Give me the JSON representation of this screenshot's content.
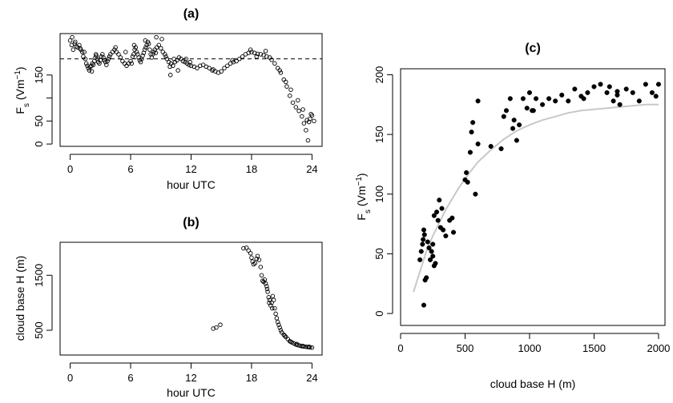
{
  "chart_data": [
    {
      "id": "a",
      "type": "scatter",
      "title": "(a)",
      "xlabel": "hour UTC",
      "ylabel_main": "F",
      "ylabel_sub": "s",
      "ylabel_unit_pre": " (Vm",
      "ylabel_unit_sup": "−1",
      "ylabel_unit_post": ")",
      "xlim": [
        -1,
        25
      ],
      "ylim": [
        -5,
        240
      ],
      "xticks": [
        0,
        6,
        12,
        18,
        24
      ],
      "yticks": [
        0,
        50,
        100,
        150
      ],
      "ytick_labels": [
        "0",
        "50",
        "",
        "150"
      ],
      "hline": 185,
      "points": [
        [
          0.0,
          225
        ],
        [
          0.15,
          215
        ],
        [
          0.3,
          205
        ],
        [
          0.45,
          218
        ],
        [
          0.6,
          212
        ],
        [
          0.75,
          210
        ],
        [
          0.9,
          215
        ],
        [
          1.05,
          205
        ],
        [
          1.2,
          200
        ],
        [
          1.3,
          190
        ],
        [
          1.4,
          200
        ],
        [
          1.5,
          185
        ],
        [
          1.6,
          175
        ],
        [
          1.7,
          170
        ],
        [
          1.8,
          165
        ],
        [
          1.9,
          160
        ],
        [
          2.0,
          168
        ],
        [
          2.1,
          170
        ],
        [
          2.2,
          175
        ],
        [
          2.3,
          172
        ],
        [
          2.4,
          180
        ],
        [
          2.5,
          188
        ],
        [
          2.6,
          192
        ],
        [
          2.7,
          185
        ],
        [
          2.8,
          178
        ],
        [
          2.9,
          175
        ],
        [
          3.0,
          182
        ],
        [
          3.1,
          190
        ],
        [
          3.2,
          195
        ],
        [
          3.3,
          188
        ],
        [
          3.4,
          182
        ],
        [
          3.5,
          178
        ],
        [
          3.6,
          172
        ],
        [
          3.7,
          180
        ],
        [
          3.8,
          185
        ],
        [
          3.9,
          190
        ],
        [
          4.0,
          195
        ],
        [
          4.2,
          200
        ],
        [
          4.4,
          205
        ],
        [
          4.6,
          200
        ],
        [
          4.8,
          195
        ],
        [
          5.0,
          188
        ],
        [
          5.2,
          180
        ],
        [
          5.4,
          175
        ],
        [
          5.6,
          170
        ],
        [
          5.8,
          175
        ],
        [
          6.0,
          180
        ],
        [
          6.1,
          175
        ],
        [
          6.2,
          190
        ],
        [
          6.3,
          195
        ],
        [
          6.4,
          205
        ],
        [
          6.5,
          210
        ],
        [
          6.6,
          200
        ],
        [
          6.7,
          195
        ],
        [
          6.8,
          188
        ],
        [
          6.9,
          182
        ],
        [
          7.0,
          178
        ],
        [
          7.1,
          185
        ],
        [
          7.2,
          192
        ],
        [
          7.3,
          198
        ],
        [
          7.4,
          205
        ],
        [
          7.5,
          210
        ],
        [
          7.6,
          215
        ],
        [
          7.7,
          222
        ],
        [
          7.8,
          218
        ],
        [
          7.9,
          205
        ],
        [
          8.0,
          195
        ],
        [
          8.1,
          188
        ],
        [
          8.2,
          195
        ],
        [
          8.3,
          200
        ],
        [
          8.4,
          205
        ],
        [
          8.6,
          210
        ],
        [
          8.8,
          215
        ],
        [
          9.0,
          208
        ],
        [
          9.2,
          200
        ],
        [
          9.4,
          195
        ],
        [
          9.6,
          185
        ],
        [
          9.8,
          178
        ],
        [
          10.0,
          175
        ],
        [
          10.2,
          170
        ],
        [
          10.4,
          178
        ],
        [
          10.6,
          182
        ],
        [
          10.8,
          188
        ],
        [
          11.0,
          185
        ],
        [
          11.2,
          180
        ],
        [
          11.4,
          178
        ],
        [
          11.6,
          175
        ],
        [
          11.8,
          172
        ],
        [
          12.0,
          170
        ],
        [
          12.3,
          168
        ],
        [
          12.6,
          165
        ],
        [
          12.9,
          170
        ],
        [
          13.2,
          172
        ],
        [
          13.5,
          168
        ],
        [
          13.8,
          165
        ],
        [
          14.1,
          160
        ],
        [
          14.4,
          158
        ],
        [
          14.7,
          155
        ],
        [
          15.0,
          158
        ],
        [
          15.3,
          165
        ],
        [
          15.6,
          170
        ],
        [
          15.9,
          175
        ],
        [
          16.2,
          178
        ],
        [
          16.5,
          180
        ],
        [
          16.8,
          185
        ],
        [
          17.1,
          190
        ],
        [
          17.4,
          195
        ],
        [
          17.7,
          198
        ],
        [
          18.0,
          200
        ],
        [
          18.3,
          198
        ],
        [
          18.6,
          196
        ],
        [
          18.9,
          195
        ],
        [
          19.2,
          193
        ],
        [
          19.5,
          190
        ],
        [
          19.8,
          188
        ],
        [
          20.0,
          183
        ],
        [
          20.3,
          175
        ],
        [
          20.6,
          165
        ],
        [
          20.9,
          155
        ],
        [
          21.2,
          140
        ],
        [
          21.5,
          125
        ],
        [
          21.8,
          105
        ],
        [
          22.1,
          90
        ],
        [
          22.4,
          80
        ],
        [
          22.7,
          72
        ],
        [
          23.0,
          60
        ],
        [
          23.2,
          45
        ],
        [
          23.4,
          30
        ],
        [
          23.5,
          52
        ],
        [
          23.6,
          8
        ],
        [
          23.7,
          48
        ],
        [
          23.8,
          55
        ],
        [
          23.9,
          65
        ],
        [
          24.0,
          62
        ],
        [
          24.2,
          50
        ],
        [
          0.2,
          232
        ],
        [
          0.5,
          222
        ],
        [
          1.0,
          208
        ],
        [
          2.15,
          158
        ],
        [
          2.55,
          195
        ],
        [
          4.5,
          210
        ],
        [
          5.5,
          200
        ],
        [
          6.35,
          215
        ],
        [
          7.45,
          225
        ],
        [
          8.5,
          198
        ],
        [
          8.55,
          232
        ],
        [
          9.1,
          228
        ],
        [
          9.5,
          190
        ],
        [
          9.9,
          168
        ],
        [
          9.95,
          150
        ],
        [
          10.3,
          185
        ],
        [
          10.7,
          160
        ],
        [
          11.5,
          185
        ],
        [
          11.9,
          178
        ],
        [
          14.2,
          162
        ],
        [
          16.1,
          182
        ],
        [
          17.9,
          205
        ],
        [
          18.5,
          190
        ],
        [
          19.4,
          202
        ],
        [
          20.8,
          160
        ],
        [
          21.4,
          135
        ],
        [
          21.9,
          118
        ],
        [
          22.6,
          95
        ],
        [
          23.1,
          75
        ]
      ]
    },
    {
      "id": "b",
      "type": "scatter",
      "title": "(b)",
      "xlabel": "hour UTC",
      "ylabel": "cloud base H (m)",
      "xlim": [
        -1,
        25
      ],
      "ylim": [
        50,
        2100
      ],
      "xticks": [
        0,
        6,
        12,
        18,
        24
      ],
      "yticks": [
        500,
        1500
      ],
      "points": [
        [
          14.2,
          530
        ],
        [
          14.5,
          550
        ],
        [
          14.9,
          600
        ],
        [
          17.2,
          1990
        ],
        [
          17.5,
          2000
        ],
        [
          17.7,
          1950
        ],
        [
          17.9,
          1900
        ],
        [
          18.0,
          1820
        ],
        [
          18.1,
          1750
        ],
        [
          18.2,
          1700
        ],
        [
          18.35,
          1720
        ],
        [
          18.5,
          1800
        ],
        [
          18.6,
          1850
        ],
        [
          18.75,
          1780
        ],
        [
          18.9,
          1650
        ],
        [
          19.0,
          1500
        ],
        [
          19.1,
          1400
        ],
        [
          19.2,
          1380
        ],
        [
          19.3,
          1420
        ],
        [
          19.4,
          1350
        ],
        [
          19.5,
          1300
        ],
        [
          19.6,
          1200
        ],
        [
          19.7,
          1100
        ],
        [
          19.8,
          1050
        ],
        [
          19.9,
          950
        ],
        [
          20.0,
          1000
        ],
        [
          20.1,
          1120
        ],
        [
          20.2,
          1050
        ],
        [
          20.3,
          900
        ],
        [
          20.4,
          800
        ],
        [
          20.5,
          720
        ],
        [
          20.6,
          650
        ],
        [
          20.7,
          600
        ],
        [
          20.8,
          550
        ],
        [
          20.9,
          500
        ],
        [
          21.0,
          460
        ],
        [
          21.2,
          420
        ],
        [
          21.4,
          380
        ],
        [
          21.6,
          340
        ],
        [
          21.8,
          300
        ],
        [
          22.0,
          280
        ],
        [
          22.2,
          260
        ],
        [
          22.4,
          240
        ],
        [
          22.6,
          230
        ],
        [
          22.8,
          220
        ],
        [
          23.0,
          210
        ],
        [
          23.2,
          205
        ],
        [
          23.4,
          200
        ],
        [
          23.6,
          195
        ],
        [
          23.8,
          190
        ],
        [
          24.0,
          185
        ],
        [
          19.55,
          1250
        ],
        [
          19.75,
          1000
        ],
        [
          20.05,
          900
        ],
        [
          21.3,
          400
        ],
        [
          21.9,
          290
        ],
        [
          22.5,
          250
        ],
        [
          23.1,
          215
        ],
        [
          23.7,
          200
        ]
      ]
    },
    {
      "id": "c",
      "type": "scatter",
      "title": "(c)",
      "xlabel": "cloud base H (m)",
      "ylabel_main": "F",
      "ylabel_sub": "s",
      "ylabel_unit_pre": " (Vm",
      "ylabel_unit_sup": "−1",
      "ylabel_unit_post": ")",
      "xlim": [
        0,
        2050
      ],
      "ylim": [
        -10,
        205
      ],
      "xticks": [
        0,
        500,
        1000,
        1500,
        2000
      ],
      "yticks": [
        0,
        50,
        100,
        150,
        200
      ],
      "curve_color": "#c8c8c8",
      "curve": [
        [
          100,
          18
        ],
        [
          150,
          35
        ],
        [
          200,
          52
        ],
        [
          250,
          65
        ],
        [
          300,
          76
        ],
        [
          350,
          87
        ],
        [
          400,
          96
        ],
        [
          450,
          105
        ],
        [
          500,
          113
        ],
        [
          550,
          120
        ],
        [
          600,
          127
        ],
        [
          700,
          137
        ],
        [
          800,
          146
        ],
        [
          900,
          153
        ],
        [
          1000,
          158
        ],
        [
          1100,
          162
        ],
        [
          1200,
          165
        ],
        [
          1300,
          168
        ],
        [
          1400,
          170
        ],
        [
          1500,
          171
        ],
        [
          1600,
          172
        ],
        [
          1700,
          173
        ],
        [
          1800,
          174
        ],
        [
          1900,
          175
        ],
        [
          2000,
          175
        ]
      ],
      "points": [
        [
          150,
          45
        ],
        [
          160,
          52
        ],
        [
          170,
          58
        ],
        [
          175,
          62
        ],
        [
          180,
          70
        ],
        [
          185,
          66
        ],
        [
          190,
          28
        ],
        [
          200,
          30
        ],
        [
          210,
          60
        ],
        [
          220,
          55
        ],
        [
          230,
          45
        ],
        [
          240,
          52
        ],
        [
          250,
          48
        ],
        [
          260,
          40
        ],
        [
          270,
          42
        ],
        [
          180,
          7
        ],
        [
          250,
          58
        ],
        [
          260,
          82
        ],
        [
          280,
          85
        ],
        [
          290,
          78
        ],
        [
          300,
          95
        ],
        [
          310,
          72
        ],
        [
          320,
          88
        ],
        [
          330,
          70
        ],
        [
          350,
          65
        ],
        [
          380,
          78
        ],
        [
          400,
          80
        ],
        [
          410,
          68
        ],
        [
          500,
          112
        ],
        [
          510,
          118
        ],
        [
          520,
          110
        ],
        [
          540,
          135
        ],
        [
          550,
          152
        ],
        [
          560,
          160
        ],
        [
          580,
          100
        ],
        [
          600,
          178
        ],
        [
          600,
          142
        ],
        [
          700,
          140
        ],
        [
          780,
          138
        ],
        [
          800,
          165
        ],
        [
          820,
          170
        ],
        [
          850,
          180
        ],
        [
          870,
          155
        ],
        [
          880,
          162
        ],
        [
          900,
          145
        ],
        [
          920,
          158
        ],
        [
          950,
          180
        ],
        [
          980,
          172
        ],
        [
          1000,
          185
        ],
        [
          1020,
          170
        ],
        [
          1050,
          180
        ],
        [
          1100,
          175
        ],
        [
          1150,
          180
        ],
        [
          1200,
          178
        ],
        [
          1250,
          183
        ],
        [
          1300,
          178
        ],
        [
          1350,
          188
        ],
        [
          1400,
          182
        ],
        [
          1450,
          185
        ],
        [
          1500,
          190
        ],
        [
          1550,
          192
        ],
        [
          1600,
          185
        ],
        [
          1620,
          190
        ],
        [
          1650,
          178
        ],
        [
          1680,
          183
        ],
        [
          1700,
          175
        ],
        [
          1750,
          188
        ],
        [
          1800,
          185
        ],
        [
          1850,
          178
        ],
        [
          1900,
          192
        ],
        [
          1950,
          185
        ],
        [
          2000,
          192
        ],
        [
          1980,
          182
        ],
        [
          1030,
          170
        ],
        [
          1420,
          180
        ],
        [
          1680,
          186
        ]
      ]
    }
  ]
}
